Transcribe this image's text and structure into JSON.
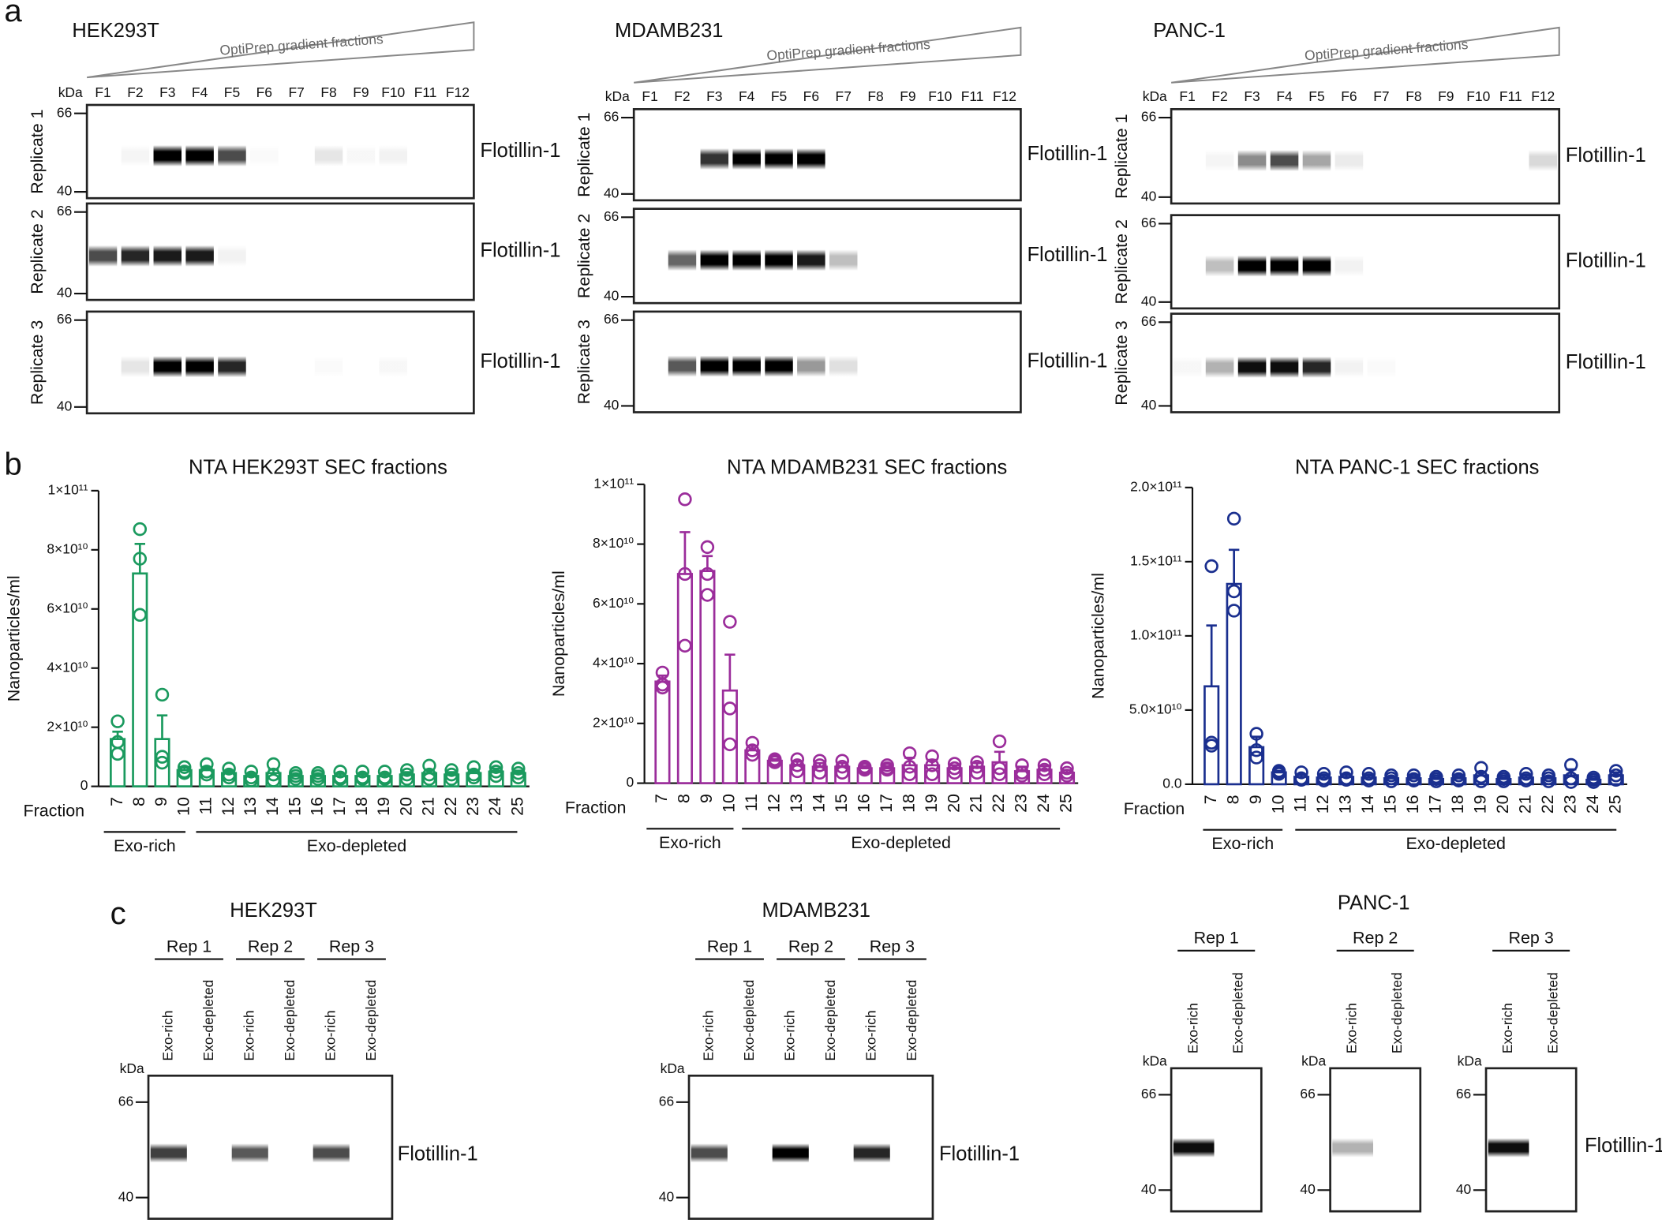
{
  "panel_labels": [
    "a",
    "b",
    "c"
  ],
  "blots_a": [
    {
      "title": "HEK293T",
      "gradient_label": "OptiPrep gradient fractions",
      "kda_label": "kDa",
      "lanes": [
        "F1",
        "F2",
        "F3",
        "F4",
        "F5",
        "F6",
        "F7",
        "F8",
        "F9",
        "F10",
        "F11",
        "F12"
      ],
      "replicates": [
        "Replicate 1",
        "Replicate 2",
        "Replicate 3"
      ],
      "markers": [
        66,
        40
      ],
      "protein": "Flotillin-1"
    },
    {
      "title": "MDAMB231",
      "gradient_label": "OptiPrep gradient fractions",
      "kda_label": "kDa",
      "lanes": [
        "F1",
        "F2",
        "F3",
        "F4",
        "F5",
        "F6",
        "F7",
        "F8",
        "F9",
        "F10",
        "F11",
        "F12"
      ],
      "replicates": [
        "Replicate 1",
        "Replicate 2",
        "Replicate 3"
      ],
      "markers": [
        66,
        40
      ],
      "protein": "Flotillin-1"
    },
    {
      "title": "PANC-1",
      "gradient_label": "OptiPrep gradient fractions",
      "kda_label": "kDa",
      "lanes": [
        "F1",
        "F2",
        "F3",
        "F4",
        "F5",
        "F6",
        "F7",
        "F8",
        "F9",
        "F10",
        "F11",
        "F12"
      ],
      "replicates": [
        "Replicate 1",
        "Replicate 2",
        "Replicate 3"
      ],
      "markers": [
        66,
        40
      ],
      "protein": "Flotillin-1"
    }
  ],
  "chart_data": [
    {
      "type": "bar",
      "title": "NTA HEK293T SEC fractions",
      "x_label": "Fraction",
      "y_label": "Nanoparticles/ml",
      "color": "#1a9a5e",
      "grid": false,
      "groups": [
        "Exo-rich",
        "Exo-depleted"
      ],
      "categories": [
        "7",
        "8",
        "9",
        "10",
        "11",
        "12",
        "13",
        "14",
        "15",
        "16",
        "17",
        "18",
        "19",
        "20",
        "21",
        "22",
        "23",
        "24",
        "25"
      ],
      "values": [
        16000000000.0,
        72000000000.0,
        16000000000.0,
        5500000000.0,
        5500000000.0,
        4500000000.0,
        3500000000.0,
        4500000000.0,
        3500000000.0,
        3500000000.0,
        3500000000.0,
        3500000000.0,
        3500000000.0,
        4000000000.0,
        4500000000.0,
        4000000000.0,
        4500000000.0,
        5000000000.0,
        4500000000.0
      ],
      "errors": [
        2500000000.0,
        10000000000.0,
        8000000000.0,
        1000000000.0,
        1000000000.0,
        800000000.0,
        800000000.0,
        1200000000.0,
        600000000.0,
        600000000.0,
        800000000.0,
        700000000.0,
        700000000.0,
        800000000.0,
        1200000000.0,
        800000000.0,
        1000000000.0,
        1000000000.0,
        800000000.0
      ],
      "points": [
        [
          22000000000.0,
          15000000000.0,
          11000000000.0
        ],
        [
          87000000000.0,
          77000000000.0,
          58000000000.0
        ],
        [
          31000000000.0,
          10000000000.0,
          8000000000.0
        ],
        [
          6500000000.0,
          5000000000.0,
          4500000000.0
        ],
        [
          7500000000.0,
          5000000000.0,
          4000000000.0
        ],
        [
          6000000000.0,
          4000000000.0,
          3000000000.0
        ],
        [
          5000000000.0,
          3000000000.0,
          2000000000.0
        ],
        [
          7500000000.0,
          4000000000.0,
          2000000000.0
        ],
        [
          4500000000.0,
          3500000000.0,
          2500000000.0
        ],
        [
          4500000000.0,
          3500000000.0,
          2500000000.0
        ],
        [
          5000000000.0,
          3000000000.0,
          2500000000.0
        ],
        [
          5000000000.0,
          3000000000.0,
          2500000000.0
        ],
        [
          5000000000.0,
          3000000000.0,
          2500000000.0
        ],
        [
          5500000000.0,
          4000000000.0,
          2500000000.0
        ],
        [
          7000000000.0,
          4000000000.0,
          2500000000.0
        ],
        [
          5500000000.0,
          4000000000.0,
          2500000000.0
        ],
        [
          6500000000.0,
          4000000000.0,
          3000000000.0
        ],
        [
          6500000000.0,
          5000000000.0,
          3500000000.0
        ],
        [
          6000000000.0,
          4500000000.0,
          3000000000.0
        ]
      ],
      "ylim": [
        0,
        100000000000.0
      ],
      "yticks": [
        0,
        {
          "value": 20000000000.0,
          "label": "2×10¹⁰"
        },
        {
          "value": 40000000000.0,
          "label": "4×10¹⁰"
        },
        {
          "value": 60000000000.0,
          "label": "6×10¹⁰"
        },
        {
          "value": 80000000000.0,
          "label": "8×10¹⁰"
        },
        {
          "value": 100000000000.0,
          "label": "1×10¹¹"
        }
      ]
    },
    {
      "type": "bar",
      "title": "NTA MDAMB231 SEC fractions",
      "x_label": "Fraction",
      "y_label": "Nanoparticles/ml",
      "color": "#9b2d9b",
      "grid": false,
      "groups": [
        "Exo-rich",
        "Exo-depleted"
      ],
      "categories": [
        "7",
        "8",
        "9",
        "10",
        "11",
        "12",
        "13",
        "14",
        "15",
        "16",
        "17",
        "18",
        "19",
        "20",
        "21",
        "22",
        "23",
        "24",
        "25"
      ],
      "values": [
        34000000000.0,
        70000000000.0,
        71000000000.0,
        31000000000.0,
        11000000000.0,
        7500000000.0,
        6000000000.0,
        5500000000.0,
        5500000000.0,
        5000000000.0,
        5000000000.0,
        6000000000.0,
        6000000000.0,
        5000000000.0,
        5500000000.0,
        7000000000.0,
        4000000000.0,
        4500000000.0,
        3500000000.0
      ],
      "errors": [
        2000000000.0,
        14000000000.0,
        5000000000.0,
        12000000000.0,
        1500000000.0,
        500000000.0,
        1200000000.0,
        1200000000.0,
        1200000000.0,
        600000000.0,
        600000000.0,
        2500000000.0,
        1800000000.0,
        1000000000.0,
        1200000000.0,
        3500000000.0,
        1500000000.0,
        1200000000.0,
        800000000.0
      ],
      "points": [
        [
          37000000000.0,
          33000000000.0,
          32000000000.0
        ],
        [
          95000000000.0,
          70000000000.0,
          46000000000.0
        ],
        [
          79000000000.0,
          70000000000.0,
          63000000000.0
        ],
        [
          54000000000.0,
          25000000000.0,
          13000000000.0
        ],
        [
          13500000000.0,
          11000000000.0,
          9500000000.0
        ],
        [
          8000000000.0,
          7500000000.0,
          7000000000.0
        ],
        [
          8000000000.0,
          6000000000.0,
          4000000000.0
        ],
        [
          7500000000.0,
          6000000000.0,
          3500000000.0
        ],
        [
          7500000000.0,
          5500000000.0,
          3500000000.0
        ],
        [
          5500000000.0,
          5000000000.0,
          4500000000.0
        ],
        [
          6000000000.0,
          5000000000.0,
          4500000000.0
        ],
        [
          10000000000.0,
          5500000000.0,
          3000000000.0
        ],
        [
          9000000000.0,
          6000000000.0,
          3000000000.0
        ],
        [
          6500000000.0,
          5000000000.0,
          3500000000.0
        ],
        [
          7000000000.0,
          5500000000.0,
          3500000000.0
        ],
        [
          14000000000.0,
          5000000000.0,
          3000000000.0
        ],
        [
          6000000000.0,
          3500000000.0,
          2500000000.0
        ],
        [
          6000000000.0,
          4500000000.0,
          3000000000.0
        ],
        [
          5000000000.0,
          3500000000.0,
          2500000000.0
        ]
      ],
      "ylim": [
        0,
        100000000000.0
      ],
      "yticks": [
        0,
        {
          "value": 20000000000.0,
          "label": "2×10¹⁰"
        },
        {
          "value": 40000000000.0,
          "label": "4×10¹⁰"
        },
        {
          "value": 60000000000.0,
          "label": "6×10¹⁰"
        },
        {
          "value": 80000000000.0,
          "label": "8×10¹⁰"
        },
        {
          "value": 100000000000.0,
          "label": "1×10¹¹"
        }
      ]
    },
    {
      "type": "bar",
      "title": "NTA PANC-1 SEC fractions",
      "x_label": "Fraction",
      "y_label": "Nanoparticles/ml",
      "color": "#1a2f8f",
      "grid": false,
      "groups": [
        "Exo-rich",
        "Exo-depleted"
      ],
      "categories": [
        "7",
        "8",
        "9",
        "10",
        "11",
        "12",
        "13",
        "14",
        "15",
        "16",
        "17",
        "18",
        "19",
        "20",
        "21",
        "22",
        "23",
        "24",
        "25"
      ],
      "values": [
        66000000000.0,
        135000000000.0,
        25000000000.0,
        8000000000.0,
        5000000000.0,
        4500000000.0,
        5000000000.0,
        4500000000.0,
        4000000000.0,
        4000000000.0,
        3500000000.0,
        4000000000.0,
        6000000000.0,
        3500000000.0,
        4500000000.0,
        4000000000.0,
        6000000000.0,
        3000000000.0,
        6000000000.0
      ],
      "errors": [
        41000000000.0,
        23000000000.0,
        7000000000.0,
        1000000000.0,
        1500000000.0,
        1500000000.0,
        1500000000.0,
        1500000000.0,
        1000000000.0,
        1000000000.0,
        1000000000.0,
        1000000000.0,
        2500000000.0,
        1000000000.0,
        1500000000.0,
        1000000000.0,
        4000000000.0,
        1000000000.0,
        2000000000.0
      ],
      "points": [
        [
          147000000000.0,
          28000000000.0,
          26000000000.0
        ],
        [
          179000000000.0,
          130000000000.0,
          117000000000.0
        ],
        [
          34000000000.0,
          23000000000.0,
          18000000000.0
        ],
        [
          9000000000.0,
          8000000000.0,
          7000000000.0
        ],
        [
          8000000000.0,
          4000000000.0,
          3000000000.0
        ],
        [
          7000000000.0,
          4000000000.0,
          2500000000.0
        ],
        [
          8000000000.0,
          4000000000.0,
          3000000000.0
        ],
        [
          7000000000.0,
          4000000000.0,
          2500000000.0
        ],
        [
          6000000000.0,
          4000000000.0,
          2000000000.0
        ],
        [
          6000000000.0,
          3500000000.0,
          2500000000.0
        ],
        [
          5000000000.0,
          3500000000.0,
          2000000000.0
        ],
        [
          6000000000.0,
          3500000000.0,
          2500000000.0
        ],
        [
          11000000000.0,
          5000000000.0,
          2000000000.0
        ],
        [
          5000000000.0,
          3500000000.0,
          2000000000.0
        ],
        [
          7000000000.0,
          4000000000.0,
          2500000000.0
        ],
        [
          6000000000.0,
          4000000000.0,
          2000000000.0
        ],
        [
          13000000000.0,
          4000000000.0,
          1500000000.0
        ],
        [
          4500000000.0,
          3000000000.0,
          1500000000.0
        ],
        [
          9000000000.0,
          6000000000.0,
          3000000000.0
        ]
      ],
      "ylim": [
        0,
        200000000000.0
      ],
      "yticks": [
        {
          "value": 0,
          "label": "0.0"
        },
        {
          "value": 50000000000.0,
          "label": "5.0×10¹⁰"
        },
        {
          "value": 100000000000.0,
          "label": "1.0×10¹¹"
        },
        {
          "value": 150000000000.0,
          "label": "1.5×10¹¹"
        },
        {
          "value": 200000000000.0,
          "label": "2.0×10¹¹"
        }
      ]
    }
  ],
  "blots_c": [
    {
      "title": "HEK293T",
      "reps": [
        "Rep 1",
        "Rep 2",
        "Rep 3"
      ],
      "lanes": [
        "Exo-rich",
        "Exo-depleted"
      ],
      "kda_label": "kDa",
      "markers": [
        66,
        40
      ],
      "protein": "Flotillin-1"
    },
    {
      "title": "MDAMB231",
      "reps": [
        "Rep 1",
        "Rep 2",
        "Rep 3"
      ],
      "lanes": [
        "Exo-rich",
        "Exo-depleted"
      ],
      "kda_label": "kDa",
      "markers": [
        66,
        40
      ],
      "protein": "Flotillin-1"
    },
    {
      "title": "PANC-1",
      "reps": [
        "Rep 1",
        "Rep 2",
        "Rep 3"
      ],
      "lanes": [
        "Exo-rich",
        "Exo-depleted"
      ],
      "kda_label": "kDa",
      "markers": [
        66,
        40
      ],
      "protein": "Flotillin-1"
    }
  ]
}
